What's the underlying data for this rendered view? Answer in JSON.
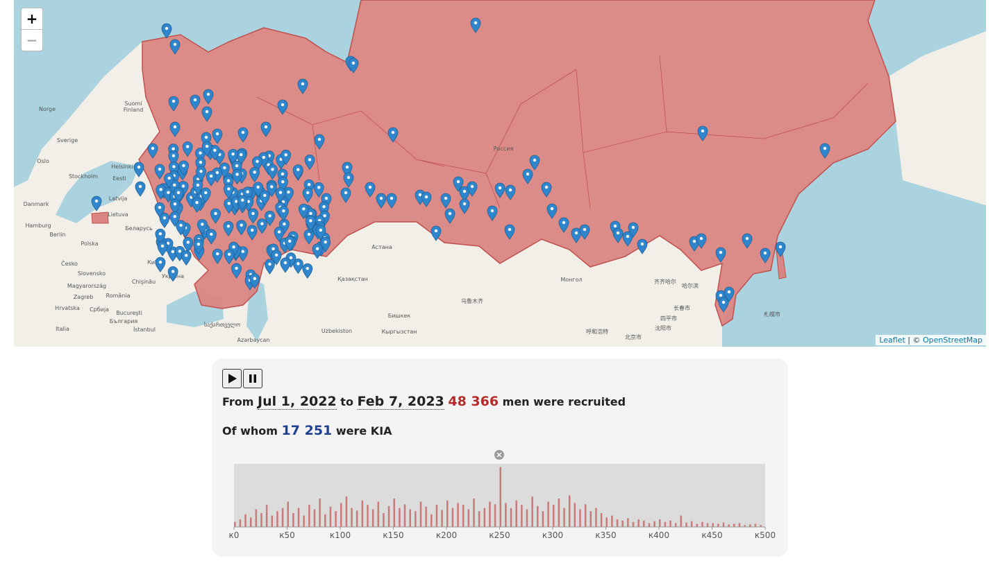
{
  "map": {
    "zoom_in": "+",
    "zoom_out": "−",
    "labels": [
      "Norge",
      "Suomi",
      "Finland",
      "Sverige",
      "Oslo",
      "Helsinki",
      "Stockholm",
      "Eesti",
      "Latvija",
      "Danmark",
      "Lietuva",
      "Hamburg",
      "Berlin",
      "Беларусь",
      "Polska",
      "Česko",
      "Київ",
      "Slovensko",
      "Україна",
      "Magyarország",
      "Chişinău",
      "Zagreb",
      "România",
      "Hrvatska",
      "Србија",
      "Bucureşti",
      "България",
      "Italia",
      "İstanbul",
      "Россия",
      "Астана",
      "Қазақстан",
      "Монгол",
      "Uzbekiston",
      "Бишкек",
      "Кыргызстан",
      "乌鲁木齐",
      "齐齐哈尔",
      "哈尔滨",
      "长春市",
      "四平市",
      "沈阳市",
      "呼和浩特",
      "北京市",
      "札幌市",
      "Azərbaycan",
      "საქართველო"
    ],
    "attribution": {
      "leaflet": "Leaflet",
      "separator": "| ©",
      "osm": "OpenStreetMap"
    }
  },
  "summary": {
    "from": "From",
    "start_date": "Jul 1, 2022",
    "to": "to",
    "end_date": "Feb 7, 2023",
    "recruited": "48 366",
    "recruited_text": "men were recruited",
    "of_whom": "Of whom",
    "kia": "17 251",
    "kia_text": "were KIA"
  },
  "chart_data": {
    "type": "bar",
    "color": "#c0504d",
    "x": [
      0,
      5,
      10,
      15,
      20,
      25,
      30,
      35,
      40,
      45,
      50,
      55,
      60,
      65,
      70,
      75,
      80,
      85,
      90,
      95,
      100,
      105,
      110,
      115,
      120,
      125,
      130,
      135,
      140,
      145,
      150,
      155,
      160,
      165,
      170,
      175,
      180,
      185,
      190,
      195,
      200,
      205,
      210,
      215,
      220,
      225,
      230,
      235,
      240,
      245,
      250,
      255,
      260,
      265,
      270,
      275,
      280,
      285,
      290,
      295,
      300,
      305,
      310,
      315,
      320,
      325,
      330,
      335,
      340,
      345,
      350,
      355,
      360,
      365,
      370,
      375,
      380,
      385,
      390,
      395,
      400,
      405,
      410,
      415,
      420,
      425,
      430,
      435,
      440,
      445,
      450,
      455,
      460,
      465,
      470,
      475,
      480,
      485,
      490,
      495
    ],
    "values": [
      8,
      12,
      20,
      15,
      28,
      22,
      35,
      18,
      25,
      30,
      40,
      22,
      30,
      18,
      35,
      28,
      45,
      20,
      32,
      25,
      38,
      48,
      30,
      26,
      42,
      35,
      28,
      40,
      22,
      33,
      45,
      30,
      36,
      28,
      25,
      40,
      32,
      20,
      35,
      27,
      42,
      30,
      38,
      35,
      28,
      45,
      25,
      30,
      40,
      36,
      95,
      38,
      30,
      42,
      35,
      28,
      48,
      33,
      25,
      40,
      35,
      45,
      30,
      50,
      38,
      28,
      36,
      25,
      30,
      22,
      15,
      18,
      12,
      10,
      14,
      8,
      12,
      10,
      6,
      9,
      12,
      8,
      10,
      6,
      18,
      7,
      9,
      5,
      8,
      6,
      6,
      5,
      7,
      4,
      5,
      6,
      3,
      4,
      5,
      3
    ],
    "xlim": [
      0,
      500
    ],
    "ylim": [
      0,
      100
    ],
    "xticks": [
      {
        "value": 0,
        "label": "к0"
      },
      {
        "value": 50,
        "label": "к50"
      },
      {
        "value": 100,
        "label": "к100"
      },
      {
        "value": 150,
        "label": "к150"
      },
      {
        "value": 200,
        "label": "к200"
      },
      {
        "value": 250,
        "label": "к250"
      },
      {
        "value": 300,
        "label": "к300"
      },
      {
        "value": 350,
        "label": "к350"
      },
      {
        "value": 400,
        "label": "к400"
      },
      {
        "value": 450,
        "label": "к450"
      },
      {
        "value": 500,
        "label": "к500"
      }
    ]
  }
}
